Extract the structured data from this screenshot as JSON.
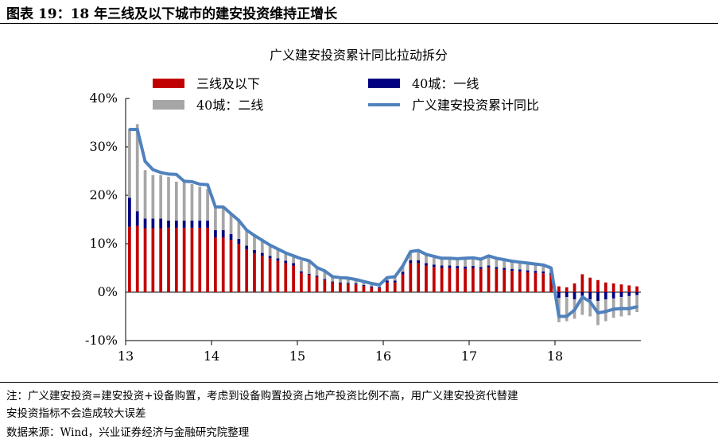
{
  "figure_title": "图表 19：18 年三线及以下城市的建安投资维持正增长",
  "notes": {
    "note_line1": "注：广义建安投资=建安投资+设备购置，考虑到设备购置投资占地产投资比例不高，用广义建安投资代替建",
    "note_line2": "安投资指标不会造成较大误差",
    "source": "数据来源：Wind，兴业证券经济与金融研究院整理"
  },
  "colors": {
    "tier3": "#c00000",
    "tier1": "#000080",
    "tier2": "#a6a6a6",
    "line": "#4f81bd"
  },
  "chart_data": {
    "type": "bar",
    "title": "广义建安投资累计同比拉动拆分",
    "xlabel": "",
    "ylabel": "",
    "ylim": [
      -0.1,
      0.4
    ],
    "yticks": [
      -0.1,
      0.0,
      0.1,
      0.2,
      0.3,
      0.4
    ],
    "ytick_labels": [
      "-10%",
      "0%",
      "10%",
      "20%",
      "30%",
      "40%"
    ],
    "xtick_labels": [
      "13",
      "14",
      "15",
      "16",
      "17",
      "18"
    ],
    "stacked": true,
    "grid": false,
    "legend_position": "top",
    "x": [
      "2013-02",
      "2013-03",
      "2013-04",
      "2013-05",
      "2013-06",
      "2013-07",
      "2013-08",
      "2013-09",
      "2013-10",
      "2013-11",
      "2013-12",
      "2014-02",
      "2014-03",
      "2014-04",
      "2014-05",
      "2014-06",
      "2014-07",
      "2014-08",
      "2014-09",
      "2014-10",
      "2014-11",
      "2014-12",
      "2015-02",
      "2015-03",
      "2015-04",
      "2015-05",
      "2015-06",
      "2015-07",
      "2015-08",
      "2015-09",
      "2015-10",
      "2015-11",
      "2015-12",
      "2016-02",
      "2016-03",
      "2016-04",
      "2016-05",
      "2016-06",
      "2016-07",
      "2016-08",
      "2016-09",
      "2016-10",
      "2016-11",
      "2016-12",
      "2017-02",
      "2017-03",
      "2017-04",
      "2017-05",
      "2017-06",
      "2017-07",
      "2017-08",
      "2017-09",
      "2017-10",
      "2017-11",
      "2017-12",
      "2018-02",
      "2018-03",
      "2018-04",
      "2018-05",
      "2018-06",
      "2018-07",
      "2018-08",
      "2018-09",
      "2018-10",
      "2018-11",
      "2018-12"
    ],
    "series": [
      {
        "name": "三线及以下",
        "type": "bar",
        "values": [
          0.135,
          0.137,
          0.132,
          0.132,
          0.132,
          0.133,
          0.133,
          0.133,
          0.133,
          0.133,
          0.133,
          0.113,
          0.113,
          0.108,
          0.1,
          0.088,
          0.08,
          0.075,
          0.07,
          0.065,
          0.06,
          0.055,
          0.04,
          0.036,
          0.032,
          0.025,
          0.02,
          0.018,
          0.017,
          0.016,
          0.013,
          0.01,
          0.008,
          0.02,
          0.02,
          0.037,
          0.06,
          0.06,
          0.055,
          0.052,
          0.05,
          0.05,
          0.049,
          0.048,
          0.05,
          0.048,
          0.051,
          0.048,
          0.046,
          0.044,
          0.043,
          0.041,
          0.04,
          0.039,
          0.036,
          0.012,
          0.01,
          0.018,
          0.037,
          0.03,
          0.025,
          0.02,
          0.018,
          0.016,
          0.014,
          0.012
        ]
      },
      {
        "name": "40城：一线",
        "type": "bar",
        "values": [
          0.06,
          0.03,
          0.02,
          0.02,
          0.02,
          0.015,
          0.015,
          0.015,
          0.015,
          0.015,
          0.015,
          0.015,
          0.015,
          0.012,
          0.01,
          0.008,
          0.007,
          0.006,
          0.005,
          0.005,
          0.005,
          0.005,
          0.003,
          0.002,
          0.002,
          0.002,
          0.002,
          0.002,
          0.002,
          0.002,
          0.002,
          0.002,
          0.002,
          0.004,
          0.004,
          0.005,
          0.006,
          0.006,
          0.005,
          0.005,
          0.005,
          0.005,
          0.005,
          0.005,
          0.004,
          0.004,
          0.004,
          0.004,
          0.004,
          0.004,
          0.004,
          0.004,
          0.004,
          0.004,
          0.004,
          -0.012,
          -0.01,
          -0.015,
          -0.012,
          -0.015,
          -0.018,
          -0.015,
          -0.013,
          -0.01,
          -0.008,
          -0.006
        ]
      },
      {
        "name": "40城：二线",
        "type": "bar",
        "values": [
          0.14,
          0.18,
          0.1,
          0.09,
          0.09,
          0.09,
          0.08,
          0.08,
          0.075,
          0.07,
          0.065,
          0.048,
          0.048,
          0.042,
          0.038,
          0.032,
          0.03,
          0.025,
          0.022,
          0.018,
          0.015,
          0.012,
          0.022,
          0.026,
          0.018,
          0.015,
          0.01,
          0.01,
          0.01,
          0.008,
          0.007,
          0.006,
          0.005,
          0.006,
          0.008,
          0.012,
          0.018,
          0.02,
          0.018,
          0.017,
          0.015,
          0.015,
          0.015,
          0.017,
          0.017,
          0.016,
          0.02,
          0.018,
          0.017,
          0.016,
          0.015,
          0.015,
          0.014,
          0.013,
          0.01,
          -0.05,
          -0.05,
          -0.04,
          -0.035,
          -0.035,
          -0.05,
          -0.045,
          -0.04,
          -0.04,
          -0.04,
          -0.035
        ]
      },
      {
        "name": "广义建安投资累计同比",
        "type": "line",
        "values": [
          0.336,
          0.336,
          0.27,
          0.253,
          0.247,
          0.244,
          0.243,
          0.229,
          0.228,
          0.223,
          0.222,
          0.176,
          0.176,
          0.162,
          0.148,
          0.128,
          0.117,
          0.107,
          0.097,
          0.089,
          0.081,
          0.075,
          0.069,
          0.065,
          0.051,
          0.044,
          0.032,
          0.03,
          0.029,
          0.026,
          0.022,
          0.018,
          0.015,
          0.03,
          0.032,
          0.054,
          0.084,
          0.086,
          0.078,
          0.074,
          0.07,
          0.07,
          0.069,
          0.07,
          0.071,
          0.068,
          0.075,
          0.07,
          0.067,
          0.064,
          0.062,
          0.06,
          0.058,
          0.056,
          0.05,
          -0.05,
          -0.05,
          -0.037,
          -0.01,
          -0.02,
          -0.043,
          -0.04,
          -0.035,
          -0.034,
          -0.034,
          -0.03
        ]
      }
    ]
  }
}
